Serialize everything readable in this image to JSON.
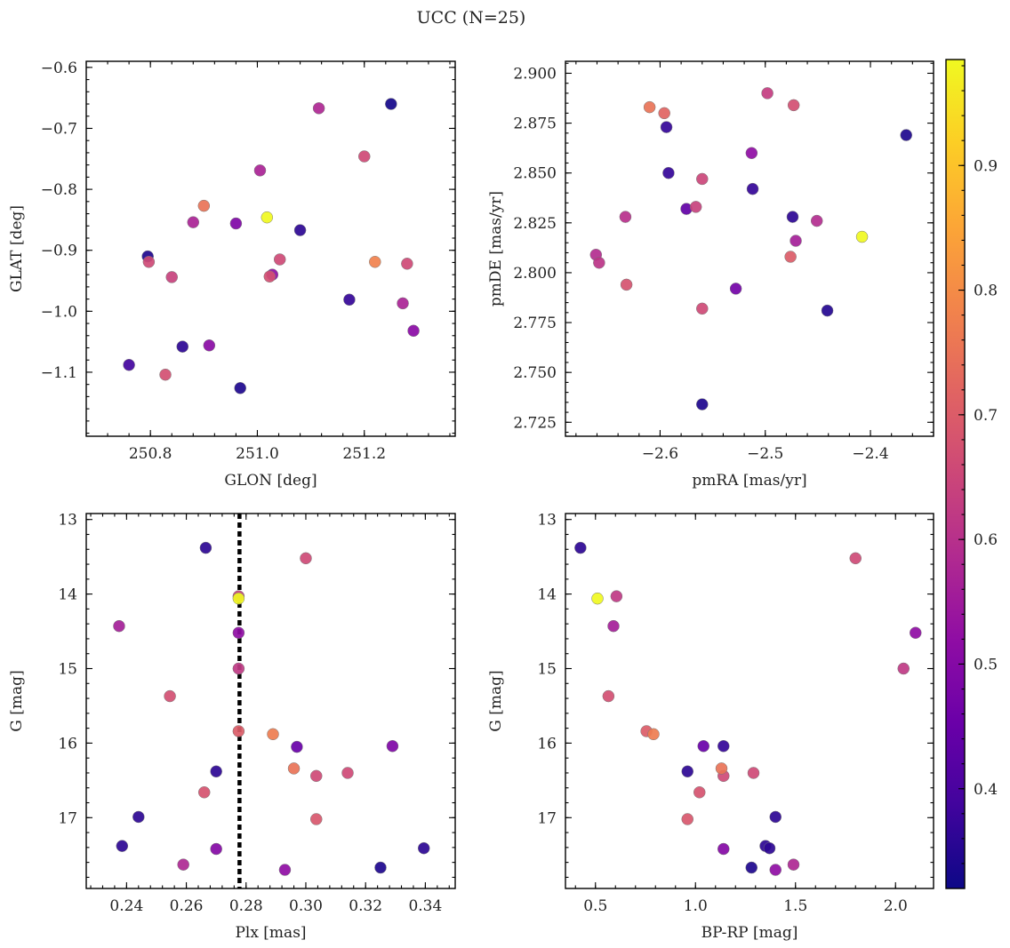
{
  "title": "UCC (N=25)",
  "colorbar": {
    "min": 0.32,
    "max": 0.985,
    "ticks": [
      0.4,
      0.5,
      0.6,
      0.7,
      0.8,
      0.9
    ],
    "tick_labels": [
      "0.4",
      "0.5",
      "0.6",
      "0.7",
      "0.8",
      "0.9"
    ],
    "colormap": "plasma"
  },
  "chart_data": [
    {
      "type": "scatter",
      "xlabel": "GLON [deg]",
      "ylabel": "GLAT [deg]",
      "xlim": [
        250.68,
        251.37
      ],
      "ylim": [
        -1.205,
        -0.59
      ],
      "xticks": [
        250.8,
        251.0,
        251.2
      ],
      "xtick_labels": [
        "250.8",
        "251.0",
        "251.2"
      ],
      "yticks": [
        -1.1,
        -1.0,
        -0.9,
        -0.8,
        -0.7,
        -0.6
      ],
      "ytick_labels": [
        "−1.1",
        "−1.0",
        "−0.9",
        "−0.8",
        "−0.7",
        "−0.6"
      ],
      "points": [
        {
          "x": 251.25,
          "y": -0.66,
          "c": 0.33
        },
        {
          "x": 251.115,
          "y": -0.667,
          "c": 0.58
        },
        {
          "x": 251.2,
          "y": -0.746,
          "c": 0.66
        },
        {
          "x": 251.005,
          "y": -0.769,
          "c": 0.57
        },
        {
          "x": 250.9,
          "y": -0.827,
          "c": 0.75
        },
        {
          "x": 251.018,
          "y": -0.846,
          "c": 0.985
        },
        {
          "x": 250.88,
          "y": -0.854,
          "c": 0.57
        },
        {
          "x": 250.96,
          "y": -0.856,
          "c": 0.49
        },
        {
          "x": 251.08,
          "y": -0.867,
          "c": 0.36
        },
        {
          "x": 250.795,
          "y": -0.91,
          "c": 0.34
        },
        {
          "x": 250.797,
          "y": -0.919,
          "c": 0.66
        },
        {
          "x": 251.042,
          "y": -0.915,
          "c": 0.66
        },
        {
          "x": 251.22,
          "y": -0.919,
          "c": 0.78
        },
        {
          "x": 251.28,
          "y": -0.922,
          "c": 0.66
        },
        {
          "x": 251.028,
          "y": -0.94,
          "c": 0.52
        },
        {
          "x": 251.023,
          "y": -0.943,
          "c": 0.67
        },
        {
          "x": 250.84,
          "y": -0.944,
          "c": 0.64
        },
        {
          "x": 251.172,
          "y": -0.981,
          "c": 0.37
        },
        {
          "x": 251.272,
          "y": -0.987,
          "c": 0.57
        },
        {
          "x": 251.292,
          "y": -1.032,
          "c": 0.51
        },
        {
          "x": 250.86,
          "y": -1.058,
          "c": 0.36
        },
        {
          "x": 250.91,
          "y": -1.056,
          "c": 0.51
        },
        {
          "x": 250.76,
          "y": -1.088,
          "c": 0.39
        },
        {
          "x": 250.828,
          "y": -1.104,
          "c": 0.67
        },
        {
          "x": 250.968,
          "y": -1.126,
          "c": 0.34
        }
      ]
    },
    {
      "type": "scatter",
      "xlabel": "pmRA [mas/yr]",
      "ylabel": "pmDE [mas/yr]",
      "xlim": [
        -2.69,
        -2.34
      ],
      "ylim": [
        2.718,
        2.906
      ],
      "xticks": [
        -2.6,
        -2.5,
        -2.4
      ],
      "xtick_labels": [
        "−2.6",
        "−2.5",
        "−2.4"
      ],
      "yticks": [
        2.725,
        2.75,
        2.775,
        2.8,
        2.825,
        2.85,
        2.875,
        2.9
      ],
      "ytick_labels": [
        "2.725",
        "2.750",
        "2.775",
        "2.800",
        "2.825",
        "2.850",
        "2.875",
        "2.900"
      ],
      "points": [
        {
          "x": -2.498,
          "y": 2.89,
          "c": 0.63
        },
        {
          "x": -2.473,
          "y": 2.884,
          "c": 0.67
        },
        {
          "x": -2.61,
          "y": 2.883,
          "c": 0.75
        },
        {
          "x": -2.596,
          "y": 2.88,
          "c": 0.72
        },
        {
          "x": -2.594,
          "y": 2.873,
          "c": 0.37
        },
        {
          "x": -2.366,
          "y": 2.869,
          "c": 0.34
        },
        {
          "x": -2.513,
          "y": 2.86,
          "c": 0.52
        },
        {
          "x": -2.592,
          "y": 2.85,
          "c": 0.37
        },
        {
          "x": -2.56,
          "y": 2.847,
          "c": 0.65
        },
        {
          "x": -2.512,
          "y": 2.842,
          "c": 0.37
        },
        {
          "x": -2.566,
          "y": 2.833,
          "c": 0.64
        },
        {
          "x": -2.575,
          "y": 2.832,
          "c": 0.44
        },
        {
          "x": -2.633,
          "y": 2.828,
          "c": 0.6
        },
        {
          "x": -2.474,
          "y": 2.828,
          "c": 0.36
        },
        {
          "x": -2.451,
          "y": 2.826,
          "c": 0.59
        },
        {
          "x": -2.408,
          "y": 2.818,
          "c": 0.985
        },
        {
          "x": -2.471,
          "y": 2.816,
          "c": 0.56
        },
        {
          "x": -2.661,
          "y": 2.809,
          "c": 0.59
        },
        {
          "x": -2.476,
          "y": 2.808,
          "c": 0.7
        },
        {
          "x": -2.658,
          "y": 2.805,
          "c": 0.61
        },
        {
          "x": -2.632,
          "y": 2.794,
          "c": 0.68
        },
        {
          "x": -2.528,
          "y": 2.792,
          "c": 0.47
        },
        {
          "x": -2.56,
          "y": 2.782,
          "c": 0.66
        },
        {
          "x": -2.441,
          "y": 2.781,
          "c": 0.35
        },
        {
          "x": -2.56,
          "y": 2.734,
          "c": 0.34
        }
      ]
    },
    {
      "type": "scatter",
      "xlabel": "Plx [mas]",
      "ylabel": "G [mag]",
      "xlim": [
        0.2265,
        0.35
      ],
      "ylim": [
        17.95,
        12.92
      ],
      "xticks": [
        0.24,
        0.26,
        0.28,
        0.3,
        0.32,
        0.34
      ],
      "xtick_labels": [
        "0.24",
        "0.26",
        "0.28",
        "0.30",
        "0.32",
        "0.34"
      ],
      "yticks": [
        13,
        14,
        15,
        16,
        17
      ],
      "ytick_labels": [
        "13",
        "14",
        "15",
        "16",
        "17"
      ],
      "vline": {
        "x": 0.2778,
        "style": "dotted"
      },
      "points": [
        {
          "x": 0.2665,
          "y": 13.38,
          "c": 0.36
        },
        {
          "x": 0.3,
          "y": 13.52,
          "c": 0.66
        },
        {
          "x": 0.2775,
          "y": 14.03,
          "c": 0.64
        },
        {
          "x": 0.2775,
          "y": 14.06,
          "c": 0.985
        },
        {
          "x": 0.2375,
          "y": 14.43,
          "c": 0.56
        },
        {
          "x": 0.2775,
          "y": 14.52,
          "c": 0.52
        },
        {
          "x": 0.2775,
          "y": 15.0,
          "c": 0.62
        },
        {
          "x": 0.2545,
          "y": 15.37,
          "c": 0.67
        },
        {
          "x": 0.2775,
          "y": 15.84,
          "c": 0.7
        },
        {
          "x": 0.289,
          "y": 15.88,
          "c": 0.77
        },
        {
          "x": 0.297,
          "y": 16.05,
          "c": 0.45
        },
        {
          "x": 0.329,
          "y": 16.04,
          "c": 0.49
        },
        {
          "x": 0.296,
          "y": 16.34,
          "c": 0.75
        },
        {
          "x": 0.27,
          "y": 16.38,
          "c": 0.36
        },
        {
          "x": 0.314,
          "y": 16.4,
          "c": 0.66
        },
        {
          "x": 0.3035,
          "y": 16.44,
          "c": 0.66
        },
        {
          "x": 0.266,
          "y": 16.66,
          "c": 0.68
        },
        {
          "x": 0.244,
          "y": 16.99,
          "c": 0.36
        },
        {
          "x": 0.3035,
          "y": 17.02,
          "c": 0.69
        },
        {
          "x": 0.2385,
          "y": 17.38,
          "c": 0.36
        },
        {
          "x": 0.3395,
          "y": 17.41,
          "c": 0.36
        },
        {
          "x": 0.27,
          "y": 17.42,
          "c": 0.5
        },
        {
          "x": 0.259,
          "y": 17.63,
          "c": 0.58
        },
        {
          "x": 0.325,
          "y": 17.67,
          "c": 0.34
        },
        {
          "x": 0.293,
          "y": 17.7,
          "c": 0.52
        }
      ]
    },
    {
      "type": "scatter",
      "xlabel": "BP-RP [mag]",
      "ylabel": "G [mag]",
      "xlim": [
        0.35,
        2.19
      ],
      "ylim": [
        17.95,
        12.92
      ],
      "xticks": [
        0.5,
        1.0,
        1.5,
        2.0
      ],
      "xtick_labels": [
        "0.5",
        "1.0",
        "1.5",
        "2.0"
      ],
      "yticks": [
        13,
        14,
        15,
        16,
        17
      ],
      "ytick_labels": [
        "13",
        "14",
        "15",
        "16",
        "17"
      ],
      "points": [
        {
          "x": 0.425,
          "y": 13.38,
          "c": 0.36
        },
        {
          "x": 1.8,
          "y": 13.52,
          "c": 0.66
        },
        {
          "x": 0.605,
          "y": 14.03,
          "c": 0.62
        },
        {
          "x": 0.51,
          "y": 14.06,
          "c": 0.985
        },
        {
          "x": 0.59,
          "y": 14.43,
          "c": 0.56
        },
        {
          "x": 2.1,
          "y": 14.52,
          "c": 0.52
        },
        {
          "x": 2.04,
          "y": 15.0,
          "c": 0.62
        },
        {
          "x": 0.565,
          "y": 15.37,
          "c": 0.67
        },
        {
          "x": 0.755,
          "y": 15.84,
          "c": 0.7
        },
        {
          "x": 0.79,
          "y": 15.88,
          "c": 0.77
        },
        {
          "x": 1.04,
          "y": 16.04,
          "c": 0.45
        },
        {
          "x": 1.14,
          "y": 16.04,
          "c": 0.37
        },
        {
          "x": 1.13,
          "y": 16.34,
          "c": 0.75
        },
        {
          "x": 0.96,
          "y": 16.38,
          "c": 0.36
        },
        {
          "x": 1.29,
          "y": 16.4,
          "c": 0.66
        },
        {
          "x": 1.14,
          "y": 16.44,
          "c": 0.66
        },
        {
          "x": 1.02,
          "y": 16.66,
          "c": 0.68
        },
        {
          "x": 1.4,
          "y": 16.99,
          "c": 0.36
        },
        {
          "x": 0.96,
          "y": 17.02,
          "c": 0.69
        },
        {
          "x": 1.35,
          "y": 17.38,
          "c": 0.36
        },
        {
          "x": 1.37,
          "y": 17.41,
          "c": 0.36
        },
        {
          "x": 1.14,
          "y": 17.42,
          "c": 0.5
        },
        {
          "x": 1.49,
          "y": 17.63,
          "c": 0.58
        },
        {
          "x": 1.28,
          "y": 17.67,
          "c": 0.34
        },
        {
          "x": 1.4,
          "y": 17.7,
          "c": 0.52
        }
      ]
    }
  ]
}
